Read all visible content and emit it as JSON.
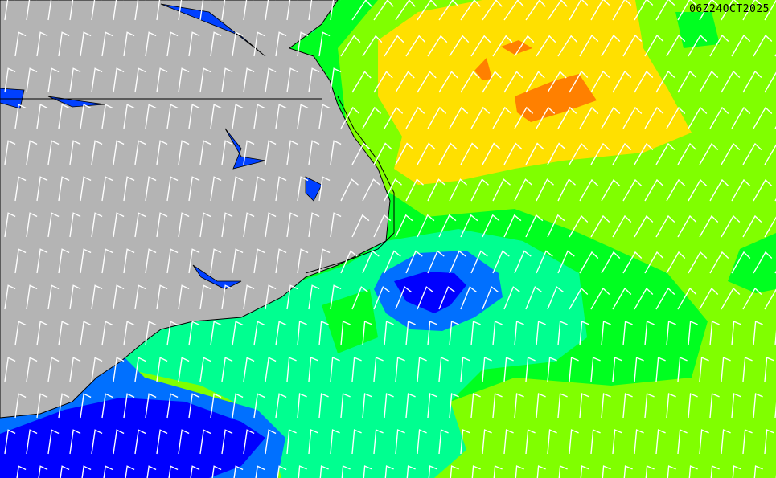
{
  "timestamp": "06Z24OCT2025",
  "colors": {
    "land": "#b4b4b4",
    "water_inland": "#0040ff",
    "level_light_green": "#80ff00",
    "level_green": "#00ff20",
    "level_mint": "#00ff90",
    "level_blue": "#0070ff",
    "level_dark_blue": "#0000ff",
    "level_yellow": "#ffe000",
    "level_orange": "#ff8000",
    "barb": "#ffffff"
  },
  "icons": {
    "wind_barb": "wind-barb-icon"
  }
}
